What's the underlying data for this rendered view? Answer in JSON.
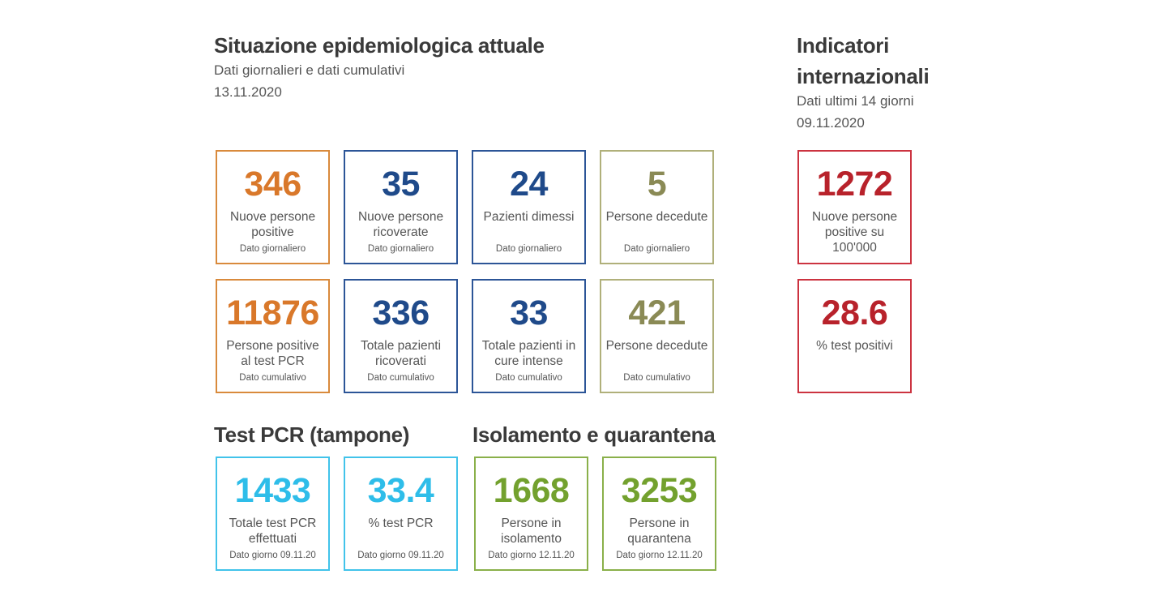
{
  "situazione": {
    "title": "Situazione epidemiologica attuale",
    "subtitle": "Dati giornalieri e dati cumulativi",
    "date": "13.11.2020",
    "cards_row1": [
      {
        "value": "346",
        "label": "Nuove persone positive",
        "note": "Dato giornaliero",
        "color": "#d9782a"
      },
      {
        "value": "35",
        "label": "Nuove persone ricoverate",
        "note": "Dato giornaliero",
        "color": "#1f4a8a"
      },
      {
        "value": "24",
        "label": "Pazienti dimessi",
        "note": "Dato giornaliero",
        "color": "#1f4a8a"
      },
      {
        "value": "5",
        "label": "Persone decedute",
        "note": "Dato giornaliero",
        "color": "#8a8a55"
      }
    ],
    "cards_row2": [
      {
        "value": "11876",
        "label": "Persone positive al test PCR",
        "note": "Dato cumulativo",
        "color": "#d9782a"
      },
      {
        "value": "336",
        "label": "Totale pazienti ricoverati",
        "note": "Dato cumulativo",
        "color": "#1f4a8a"
      },
      {
        "value": "33",
        "label": "Totale pazienti in cure intense",
        "note": "Dato cumulativo",
        "color": "#1f4a8a"
      },
      {
        "value": "421",
        "label": "Persone decedute",
        "note": "Dato cumulativo",
        "color": "#8a8a55"
      }
    ]
  },
  "indicatori": {
    "title_line1": "Indicatori",
    "title_line2": "internazionali",
    "subtitle": "Dati ultimi 14 giorni",
    "date": "09.11.2020",
    "cards": [
      {
        "value": "1272",
        "label": "Nuove persone positive su 100'000",
        "color": "#b8222b"
      },
      {
        "value": "28.6",
        "label": "% test positivi",
        "color": "#b8222b"
      }
    ]
  },
  "test_pcr": {
    "title": "Test PCR (tampone)",
    "cards": [
      {
        "value": "1433",
        "label": "Totale test PCR effettuati",
        "note": "Dato giorno 09.11.20",
        "color": "#2ebde9"
      },
      {
        "value": "33.4",
        "label": "% test PCR",
        "note": "Dato giorno 09.11.20",
        "color": "#2ebde9"
      }
    ]
  },
  "isolamento": {
    "title": "Isolamento e quarantena",
    "cards": [
      {
        "value": "1668",
        "label": "Persone in isolamento",
        "note": "Dato giorno 12.11.20",
        "color": "#73a12e"
      },
      {
        "value": "3253",
        "label": "Persone in quarantena",
        "note": "Dato giorno 12.11.20",
        "color": "#73a12e"
      }
    ]
  }
}
